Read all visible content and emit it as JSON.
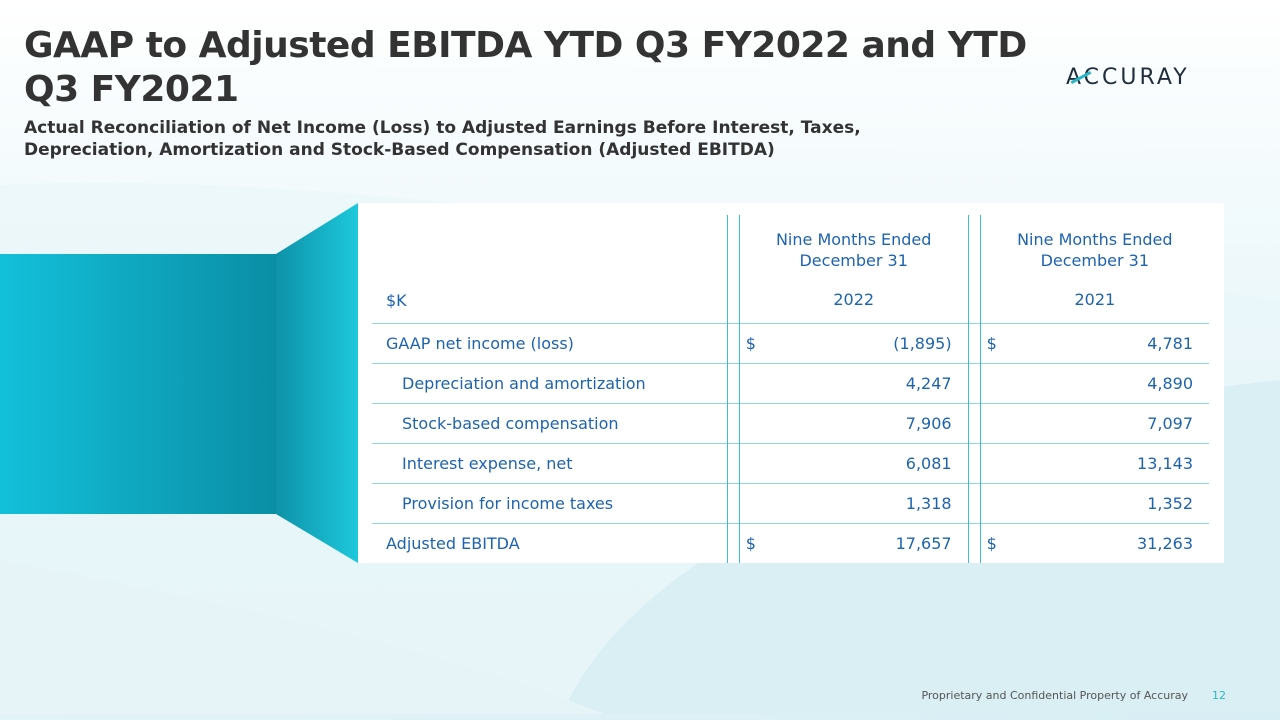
{
  "slide": {
    "title": "GAAP to Adjusted EBITDA YTD Q3 FY2022 and YTD Q3 FY2021",
    "subtitle": "Actual Reconciliation of Net Income (Loss) to Adjusted Earnings Before Interest, Taxes, Depreciation, Amortization and Stock-Based Compensation (Adjusted EBITDA)",
    "logo": "ACCURAY",
    "footer": "Proprietary and Confidential Property of Accuray",
    "page_number": "12"
  },
  "colors": {
    "title": "#333333",
    "table_text": "#1e63b0",
    "accent": "#29b6c6",
    "shape_dark": "#0f8fa3",
    "shape_light": "#17c3db"
  },
  "table": {
    "unit_label": "$K",
    "columns": [
      {
        "period": "Nine Months Ended December 31",
        "year": "2022"
      },
      {
        "period": "Nine Months Ended December 31",
        "year": "2021"
      }
    ],
    "rows": [
      {
        "label": "GAAP net income (loss)",
        "cur1": "$",
        "v1": "(1,895)",
        "cur2": "$",
        "v2": "4,781"
      },
      {
        "label": "Depreciation and amortization",
        "cur1": "",
        "v1": "4,247",
        "cur2": "",
        "v2": "4,890"
      },
      {
        "label": "Stock-based compensation",
        "cur1": "",
        "v1": "7,906",
        "cur2": "",
        "v2": "7,097"
      },
      {
        "label": "Interest expense, net",
        "cur1": "",
        "v1": "6,081",
        "cur2": "",
        "v2": "13,143"
      },
      {
        "label": "Provision for income taxes",
        "cur1": "",
        "v1": "1,318",
        "cur2": "",
        "v2": "1,352"
      },
      {
        "label": "Adjusted EBITDA",
        "cur1": "$",
        "v1": "17,657",
        "cur2": "$",
        "v2": "31,263"
      }
    ]
  }
}
